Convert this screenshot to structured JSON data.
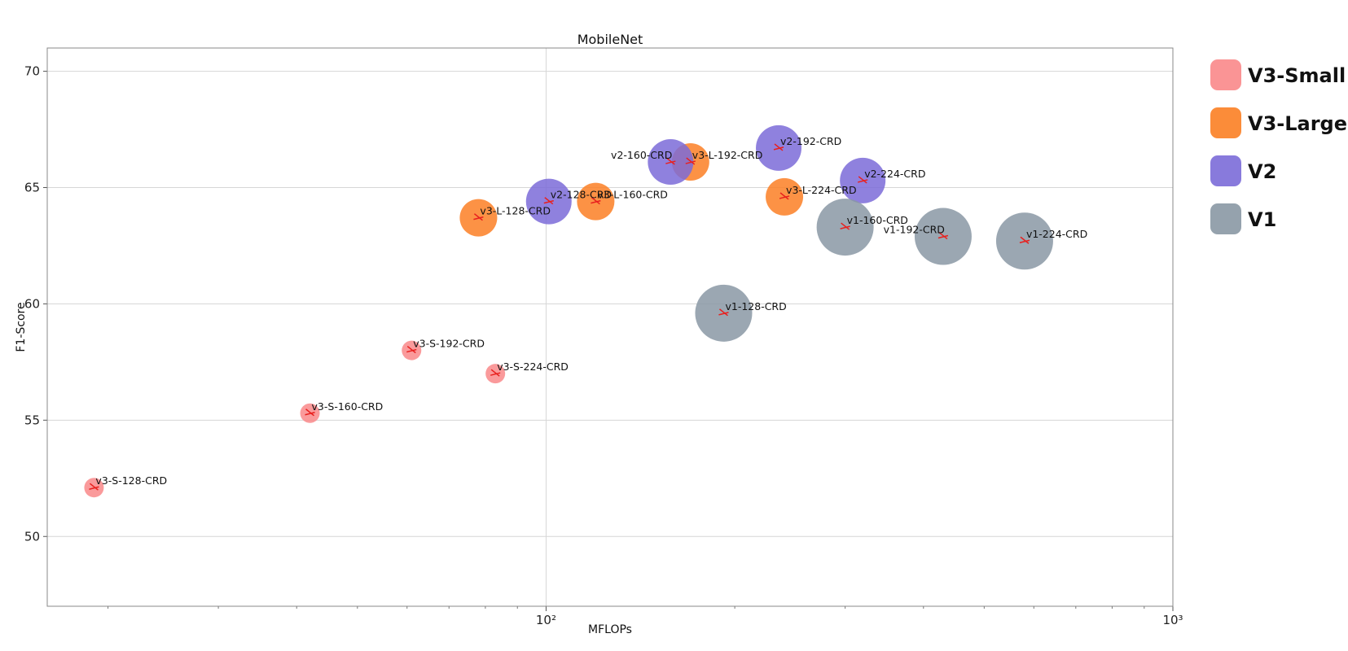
{
  "chart_data": {
    "type": "scatter",
    "title": "MobileNet",
    "xlabel": "MFLOPs",
    "ylabel": "F1-Score",
    "x_scale": "log",
    "xlim": [
      16,
      1000
    ],
    "ylim": [
      47,
      71
    ],
    "x_major_ticks": [
      100,
      1000
    ],
    "x_tick_labels": [
      "10²",
      "10³"
    ],
    "yticks": [
      50,
      55,
      60,
      65,
      70
    ],
    "grid": true,
    "legend_position": "right",
    "series": [
      {
        "name": "V3-Small",
        "color": "#f9888a",
        "points": [
          {
            "label": "v3-S-128-CRD",
            "x": 19,
            "y": 52.1,
            "size": 12
          },
          {
            "label": "v3-S-160-CRD",
            "x": 42,
            "y": 55.3,
            "size": 12
          },
          {
            "label": "v3-S-192-CRD",
            "x": 61,
            "y": 58.0,
            "size": 12
          },
          {
            "label": "v3-S-224-CRD",
            "x": 83,
            "y": 57.0,
            "size": 12
          }
        ]
      },
      {
        "name": "V3-Large",
        "color": "#fb7f24",
        "points": [
          {
            "label": "v3-L-128-CRD",
            "x": 78,
            "y": 63.7,
            "size": 23
          },
          {
            "label": "v3-L-160-CRD",
            "x": 120,
            "y": 64.4,
            "size": 23
          },
          {
            "label": "v3-L-192-CRD",
            "x": 170,
            "y": 66.1,
            "size": 23
          },
          {
            "label": "v3-L-224-CRD",
            "x": 240,
            "y": 64.6,
            "size": 23
          }
        ]
      },
      {
        "name": "V2",
        "color": "#7b6bd8",
        "points": [
          {
            "label": "v2-128-CRD",
            "x": 101,
            "y": 64.4,
            "size": 28
          },
          {
            "label": "v2-160-CRD",
            "x": 158,
            "y": 66.1,
            "size": 28
          },
          {
            "label": "v2-192-CRD",
            "x": 235,
            "y": 66.7,
            "size": 28
          },
          {
            "label": "v2-224-CRD",
            "x": 320,
            "y": 65.3,
            "size": 28
          }
        ]
      },
      {
        "name": "V1",
        "color": "#8a98a4",
        "points": [
          {
            "label": "v1-128-CRD",
            "x": 192,
            "y": 59.6,
            "size": 35
          },
          {
            "label": "v1-160-CRD",
            "x": 300,
            "y": 63.3,
            "size": 35
          },
          {
            "label": "v1-192-CRD",
            "x": 430,
            "y": 62.9,
            "size": 35
          },
          {
            "label": "v1-224-CRD",
            "x": 580,
            "y": 62.7,
            "size": 35
          }
        ]
      }
    ]
  }
}
